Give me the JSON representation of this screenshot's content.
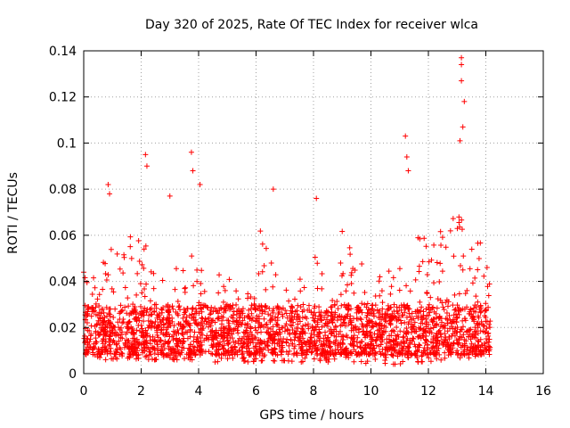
{
  "chart_data": {
    "type": "scatter",
    "title": "Day 320 of 2025, Rate Of TEC Index for receiver wlca",
    "xlabel": "GPS time / hours",
    "ylabel": "ROTI / TECUs",
    "xlim": [
      0,
      16
    ],
    "ylim": [
      0,
      0.14
    ],
    "xticks": [
      0,
      2,
      4,
      6,
      8,
      10,
      12,
      14,
      16
    ],
    "yticks": [
      0,
      0.02,
      0.04,
      0.06,
      0.08,
      0.1,
      0.12,
      0.14
    ],
    "xtick_labels": [
      "0",
      "2",
      "4",
      "6",
      "8",
      "10",
      "12",
      "14",
      "16"
    ],
    "ytick_labels": [
      "0",
      "0.02",
      "0.04",
      "0.06",
      "0.08",
      "0.1",
      "0.12",
      "0.14"
    ],
    "grid": true,
    "marker": "+",
    "marker_color": "#ff0000",
    "series": [
      {
        "name": "ROTI",
        "x_range": [
          0,
          14.15
        ],
        "baseline_typical": [
          0.008,
          0.03
        ],
        "notable_points": [
          {
            "x": 0.0,
            "y": 0.044
          },
          {
            "x": 0.85,
            "y": 0.082
          },
          {
            "x": 0.9,
            "y": 0.078
          },
          {
            "x": 2.15,
            "y": 0.095
          },
          {
            "x": 2.2,
            "y": 0.09
          },
          {
            "x": 3.0,
            "y": 0.077
          },
          {
            "x": 3.75,
            "y": 0.096
          },
          {
            "x": 3.8,
            "y": 0.088
          },
          {
            "x": 4.05,
            "y": 0.082
          },
          {
            "x": 6.6,
            "y": 0.08
          },
          {
            "x": 8.1,
            "y": 0.076
          },
          {
            "x": 11.2,
            "y": 0.103
          },
          {
            "x": 11.25,
            "y": 0.094
          },
          {
            "x": 11.3,
            "y": 0.088
          },
          {
            "x": 13.15,
            "y": 0.137
          },
          {
            "x": 13.15,
            "y": 0.134
          },
          {
            "x": 13.15,
            "y": 0.127
          },
          {
            "x": 13.25,
            "y": 0.118
          },
          {
            "x": 13.2,
            "y": 0.107
          },
          {
            "x": 13.1,
            "y": 0.101
          }
        ],
        "envelope": [
          {
            "x": 0.0,
            "lo": 0.008,
            "hi": 0.044
          },
          {
            "x": 0.5,
            "lo": 0.006,
            "hi": 0.045
          },
          {
            "x": 1.0,
            "lo": 0.006,
            "hi": 0.055
          },
          {
            "x": 1.5,
            "lo": 0.006,
            "hi": 0.06
          },
          {
            "x": 2.0,
            "lo": 0.006,
            "hi": 0.062
          },
          {
            "x": 2.5,
            "lo": 0.006,
            "hi": 0.058
          },
          {
            "x": 3.0,
            "lo": 0.006,
            "hi": 0.05
          },
          {
            "x": 3.5,
            "lo": 0.006,
            "hi": 0.045
          },
          {
            "x": 4.0,
            "lo": 0.006,
            "hi": 0.06
          },
          {
            "x": 4.5,
            "lo": 0.005,
            "hi": 0.045
          },
          {
            "x": 5.0,
            "lo": 0.005,
            "hi": 0.045
          },
          {
            "x": 5.5,
            "lo": 0.005,
            "hi": 0.04
          },
          {
            "x": 6.0,
            "lo": 0.005,
            "hi": 0.065
          },
          {
            "x": 6.5,
            "lo": 0.005,
            "hi": 0.055
          },
          {
            "x": 7.0,
            "lo": 0.005,
            "hi": 0.045
          },
          {
            "x": 7.5,
            "lo": 0.005,
            "hi": 0.04
          },
          {
            "x": 8.0,
            "lo": 0.005,
            "hi": 0.055
          },
          {
            "x": 8.5,
            "lo": 0.005,
            "hi": 0.045
          },
          {
            "x": 9.0,
            "lo": 0.005,
            "hi": 0.065
          },
          {
            "x": 9.5,
            "lo": 0.005,
            "hi": 0.05
          },
          {
            "x": 10.0,
            "lo": 0.004,
            "hi": 0.045
          },
          {
            "x": 10.5,
            "lo": 0.004,
            "hi": 0.045
          },
          {
            "x": 11.0,
            "lo": 0.004,
            "hi": 0.05
          },
          {
            "x": 11.5,
            "lo": 0.005,
            "hi": 0.065
          },
          {
            "x": 12.0,
            "lo": 0.005,
            "hi": 0.06
          },
          {
            "x": 12.5,
            "lo": 0.006,
            "hi": 0.065
          },
          {
            "x": 13.0,
            "lo": 0.006,
            "hi": 0.07
          },
          {
            "x": 13.5,
            "lo": 0.007,
            "hi": 0.06
          },
          {
            "x": 14.0,
            "lo": 0.008,
            "hi": 0.055
          },
          {
            "x": 14.15,
            "lo": 0.01,
            "hi": 0.04
          }
        ]
      }
    ]
  }
}
